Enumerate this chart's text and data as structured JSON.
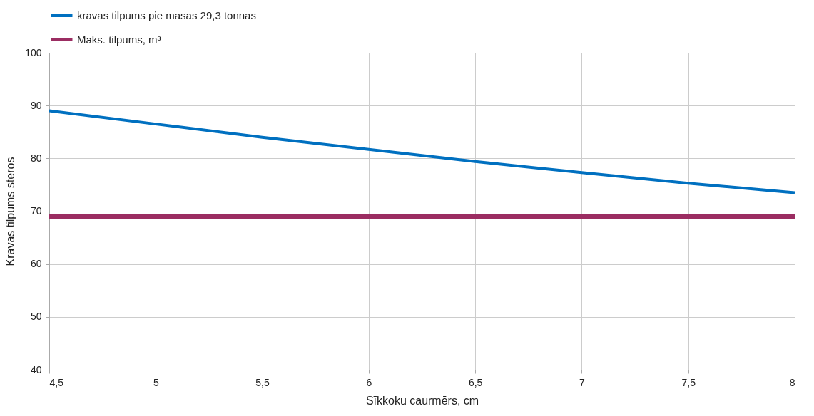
{
  "chart_data": {
    "type": "line",
    "xlabel": "Sīkkoku caurmērs, cm",
    "ylabel": "Kravas tilpums steros",
    "x": [
      4.5,
      5,
      5.5,
      6,
      6.5,
      7,
      7.5,
      8
    ],
    "series": [
      {
        "name": "kravas tilpums pie masas 29,3 tonnas",
        "color": "#0070c0",
        "values": [
          89,
          86.5,
          84,
          81.7,
          79.4,
          77.3,
          75.3,
          73.5
        ]
      },
      {
        "name": "Maks. tilpums, m³",
        "color": "#9b2d62",
        "values": [
          69,
          69,
          69,
          69,
          69,
          69,
          69,
          69
        ]
      }
    ],
    "xlim": [
      4.5,
      8
    ],
    "xticks": [
      {
        "value": 4.5,
        "label": "4,5"
      },
      5,
      {
        "value": 5.5,
        "label": "5,5"
      },
      6,
      {
        "value": 6.5,
        "label": "6,5"
      },
      7,
      {
        "value": 7.5,
        "label": "7,5"
      },
      8
    ],
    "ylim": [
      40,
      100
    ],
    "yticks": [
      40,
      50,
      60,
      70,
      80,
      90,
      100
    ],
    "grid": true,
    "legend": "top left",
    "marker": "none",
    "line_style": "solid"
  }
}
